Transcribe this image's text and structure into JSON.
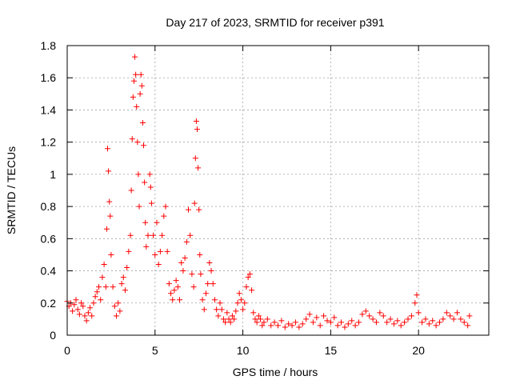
{
  "chart_data": {
    "type": "scatter",
    "title": "Day 217 of 2023, SRMTID for receiver p391",
    "xlabel": "GPS time / hours",
    "ylabel": "SRMTID / TECUs",
    "xlim": [
      0,
      24
    ],
    "ylim": [
      0,
      1.8
    ],
    "grid": true,
    "marker": "plus",
    "color": "#ff0000",
    "x_ticks": [
      0,
      5,
      10,
      15,
      20
    ],
    "x_tick_labels": [
      "0",
      "5",
      "10",
      "15",
      "20"
    ],
    "y_ticks": [
      0,
      0.2,
      0.4,
      0.6,
      0.8,
      1,
      1.2,
      1.4,
      1.6,
      1.8
    ],
    "y_tick_labels": [
      "0",
      "0.2",
      "0.4",
      "0.6",
      "0.8",
      "1",
      "1.2",
      "1.4",
      "1.6",
      "1.8"
    ],
    "series": [
      {
        "name": "SRMTID",
        "points": [
          [
            0.0,
            0.21
          ],
          [
            0.1,
            0.18
          ],
          [
            0.2,
            0.2
          ],
          [
            0.3,
            0.15
          ],
          [
            0.4,
            0.19
          ],
          [
            0.5,
            0.22
          ],
          [
            0.6,
            0.16
          ],
          [
            0.7,
            0.13
          ],
          [
            0.8,
            0.2
          ],
          [
            0.9,
            0.18
          ],
          [
            1.0,
            0.12
          ],
          [
            1.1,
            0.09
          ],
          [
            1.2,
            0.14
          ],
          [
            1.3,
            0.17
          ],
          [
            1.4,
            0.12
          ],
          [
            1.5,
            0.2
          ],
          [
            1.6,
            0.24
          ],
          [
            1.7,
            0.27
          ],
          [
            1.8,
            0.3
          ],
          [
            1.9,
            0.22
          ],
          [
            2.0,
            0.36
          ],
          [
            2.1,
            0.44
          ],
          [
            2.2,
            0.3
          ],
          [
            2.25,
            0.66
          ],
          [
            2.3,
            1.16
          ],
          [
            2.35,
            1.02
          ],
          [
            2.4,
            0.83
          ],
          [
            2.45,
            0.74
          ],
          [
            2.5,
            0.5
          ],
          [
            2.6,
            0.3
          ],
          [
            2.7,
            0.18
          ],
          [
            2.8,
            0.12
          ],
          [
            2.9,
            0.2
          ],
          [
            3.0,
            0.15
          ],
          [
            3.1,
            0.32
          ],
          [
            3.2,
            0.36
          ],
          [
            3.3,
            0.28
          ],
          [
            3.4,
            0.42
          ],
          [
            3.5,
            0.52
          ],
          [
            3.6,
            0.62
          ],
          [
            3.65,
            0.9
          ],
          [
            3.7,
            1.22
          ],
          [
            3.75,
            1.48
          ],
          [
            3.8,
            1.58
          ],
          [
            3.85,
            1.73
          ],
          [
            3.9,
            1.62
          ],
          [
            3.95,
            1.42
          ],
          [
            4.0,
            1.2
          ],
          [
            4.05,
            1.0
          ],
          [
            4.1,
            0.8
          ],
          [
            4.15,
            1.5
          ],
          [
            4.2,
            1.62
          ],
          [
            4.25,
            1.55
          ],
          [
            4.3,
            1.32
          ],
          [
            4.35,
            1.18
          ],
          [
            4.4,
            0.95
          ],
          [
            4.45,
            0.7
          ],
          [
            4.5,
            0.55
          ],
          [
            4.6,
            0.62
          ],
          [
            4.7,
            1.0
          ],
          [
            4.75,
            0.92
          ],
          [
            4.8,
            0.82
          ],
          [
            4.9,
            0.62
          ],
          [
            5.0,
            0.5
          ],
          [
            5.1,
            0.7
          ],
          [
            5.2,
            0.44
          ],
          [
            5.3,
            0.52
          ],
          [
            5.4,
            0.62
          ],
          [
            5.5,
            0.74
          ],
          [
            5.6,
            0.8
          ],
          [
            5.7,
            0.52
          ],
          [
            5.8,
            0.32
          ],
          [
            5.9,
            0.26
          ],
          [
            6.0,
            0.22
          ],
          [
            6.1,
            0.28
          ],
          [
            6.2,
            0.34
          ],
          [
            6.3,
            0.3
          ],
          [
            6.4,
            0.22
          ],
          [
            6.5,
            0.45
          ],
          [
            6.6,
            0.4
          ],
          [
            6.7,
            0.48
          ],
          [
            6.8,
            0.58
          ],
          [
            6.9,
            0.78
          ],
          [
            7.0,
            0.62
          ],
          [
            7.1,
            0.38
          ],
          [
            7.2,
            0.3
          ],
          [
            7.25,
            0.82
          ],
          [
            7.3,
            1.1
          ],
          [
            7.35,
            1.33
          ],
          [
            7.4,
            1.28
          ],
          [
            7.45,
            1.04
          ],
          [
            7.5,
            0.78
          ],
          [
            7.55,
            0.5
          ],
          [
            7.6,
            0.38
          ],
          [
            7.7,
            0.22
          ],
          [
            7.8,
            0.16
          ],
          [
            7.9,
            0.26
          ],
          [
            8.0,
            0.32
          ],
          [
            8.1,
            0.45
          ],
          [
            8.2,
            0.4
          ],
          [
            8.3,
            0.32
          ],
          [
            8.4,
            0.22
          ],
          [
            8.5,
            0.16
          ],
          [
            8.6,
            0.12
          ],
          [
            8.7,
            0.2
          ],
          [
            8.8,
            0.16
          ],
          [
            8.9,
            0.1
          ],
          [
            9.0,
            0.08
          ],
          [
            9.1,
            0.14
          ],
          [
            9.2,
            0.1
          ],
          [
            9.3,
            0.08
          ],
          [
            9.4,
            0.12
          ],
          [
            9.5,
            0.1
          ],
          [
            9.6,
            0.15
          ],
          [
            9.7,
            0.2
          ],
          [
            9.8,
            0.26
          ],
          [
            9.9,
            0.22
          ],
          [
            10.0,
            0.16
          ],
          [
            10.1,
            0.2
          ],
          [
            10.2,
            0.3
          ],
          [
            10.3,
            0.36
          ],
          [
            10.4,
            0.38
          ],
          [
            10.5,
            0.28
          ],
          [
            10.6,
            0.14
          ],
          [
            10.7,
            0.1
          ],
          [
            10.8,
            0.08
          ],
          [
            10.9,
            0.12
          ],
          [
            11.0,
            0.1
          ],
          [
            11.1,
            0.06
          ],
          [
            11.2,
            0.08
          ],
          [
            11.4,
            0.1
          ],
          [
            11.6,
            0.06
          ],
          [
            11.8,
            0.08
          ],
          [
            12.0,
            0.06
          ],
          [
            12.2,
            0.09
          ],
          [
            12.4,
            0.05
          ],
          [
            12.6,
            0.07
          ],
          [
            12.8,
            0.06
          ],
          [
            13.0,
            0.08
          ],
          [
            13.2,
            0.05
          ],
          [
            13.4,
            0.07
          ],
          [
            13.6,
            0.1
          ],
          [
            13.8,
            0.13
          ],
          [
            14.0,
            0.08
          ],
          [
            14.2,
            0.11
          ],
          [
            14.4,
            0.06
          ],
          [
            14.6,
            0.12
          ],
          [
            14.8,
            0.09
          ],
          [
            15.0,
            0.08
          ],
          [
            15.2,
            0.11
          ],
          [
            15.4,
            0.06
          ],
          [
            15.6,
            0.08
          ],
          [
            15.8,
            0.05
          ],
          [
            16.0,
            0.07
          ],
          [
            16.2,
            0.09
          ],
          [
            16.4,
            0.06
          ],
          [
            16.6,
            0.08
          ],
          [
            16.8,
            0.13
          ],
          [
            17.0,
            0.15
          ],
          [
            17.2,
            0.12
          ],
          [
            17.4,
            0.1
          ],
          [
            17.6,
            0.08
          ],
          [
            17.8,
            0.14
          ],
          [
            18.0,
            0.12
          ],
          [
            18.2,
            0.08
          ],
          [
            18.4,
            0.1
          ],
          [
            18.6,
            0.07
          ],
          [
            18.8,
            0.09
          ],
          [
            19.0,
            0.06
          ],
          [
            19.2,
            0.08
          ],
          [
            19.4,
            0.1
          ],
          [
            19.6,
            0.12
          ],
          [
            19.8,
            0.2
          ],
          [
            19.9,
            0.25
          ],
          [
            20.0,
            0.14
          ],
          [
            20.2,
            0.08
          ],
          [
            20.4,
            0.1
          ],
          [
            20.6,
            0.07
          ],
          [
            20.8,
            0.09
          ],
          [
            21.0,
            0.06
          ],
          [
            21.2,
            0.08
          ],
          [
            21.4,
            0.1
          ],
          [
            21.6,
            0.14
          ],
          [
            21.8,
            0.12
          ],
          [
            22.0,
            0.1
          ],
          [
            22.2,
            0.14
          ],
          [
            22.4,
            0.1
          ],
          [
            22.6,
            0.08
          ],
          [
            22.8,
            0.06
          ],
          [
            22.9,
            0.12
          ]
        ]
      }
    ]
  }
}
